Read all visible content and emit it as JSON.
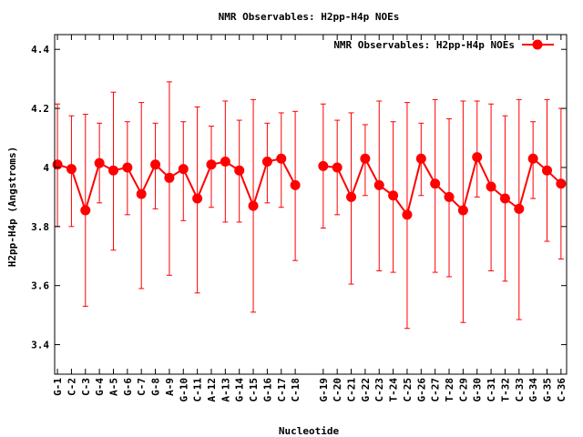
{
  "chart_data": {
    "type": "line",
    "title": "NMR Observables: H2pp-H4p NOEs",
    "xlabel": "Nucleotide",
    "ylabel": "H2pp-H4p (Angstroms)",
    "ylim": [
      3.3,
      4.45
    ],
    "yticks": [
      "3.4",
      "3.6",
      "3.8",
      "4",
      "4.2",
      "4.4"
    ],
    "ytick_values": [
      3.4,
      3.6,
      3.8,
      4.0,
      4.2,
      4.4
    ],
    "grid": false,
    "legend_position": "top-right",
    "categories": [
      "G-1",
      "C-2",
      "C-3",
      "G-4",
      "A-5",
      "G-6",
      "C-7",
      "G-8",
      "A-9",
      "G-10",
      "C-11",
      "A-12",
      "A-13",
      "G-14",
      "C-15",
      "G-16",
      "C-17",
      "C-18",
      "G-19",
      "C-20",
      "C-21",
      "G-22",
      "C-23",
      "T-24",
      "C-25",
      "G-26",
      "C-27",
      "T-28",
      "C-29",
      "G-30",
      "C-31",
      "T-32",
      "C-33",
      "G-34",
      "G-35",
      "C-36"
    ],
    "x": [
      1,
      2,
      3,
      4,
      5,
      6,
      7,
      8,
      9,
      10,
      11,
      12,
      13,
      14,
      15,
      16,
      17,
      18,
      20,
      21,
      22,
      23,
      24,
      25,
      26,
      27,
      28,
      29,
      30,
      31,
      32,
      33,
      34,
      35,
      36,
      37
    ],
    "series": [
      {
        "name": "NMR Observables: H2pp-H4p NOEs",
        "color": "#ff0000",
        "values": [
          4.01,
          3.995,
          3.855,
          4.015,
          3.99,
          4.0,
          3.91,
          4.01,
          3.965,
          3.995,
          3.895,
          4.01,
          4.02,
          3.99,
          3.87,
          4.02,
          4.03,
          3.94,
          4.005,
          4.0,
          3.9,
          4.03,
          3.94,
          3.905,
          3.84,
          4.03,
          3.945,
          3.9,
          3.855,
          4.035,
          3.935,
          3.895,
          3.86,
          4.03,
          3.99,
          3.945
        ],
        "err_low": [
          3.8,
          3.8,
          3.53,
          3.88,
          3.72,
          3.84,
          3.59,
          3.86,
          3.635,
          3.82,
          3.575,
          3.865,
          3.815,
          3.815,
          3.51,
          3.88,
          3.865,
          3.685,
          3.795,
          3.84,
          3.605,
          3.905,
          3.65,
          3.645,
          3.455,
          3.905,
          3.645,
          3.63,
          3.475,
          3.9,
          3.65,
          3.615,
          3.485,
          3.895,
          3.75,
          3.69
        ],
        "err_high": [
          4.215,
          4.175,
          4.18,
          4.15,
          4.255,
          4.155,
          4.22,
          4.15,
          4.29,
          4.155,
          4.205,
          4.14,
          4.225,
          4.16,
          4.23,
          4.15,
          4.185,
          4.19,
          4.215,
          4.16,
          4.185,
          4.145,
          4.225,
          4.155,
          4.22,
          4.15,
          4.23,
          4.165,
          4.225,
          4.225,
          4.215,
          4.175,
          4.23,
          4.155,
          4.23,
          4.2
        ]
      }
    ]
  }
}
